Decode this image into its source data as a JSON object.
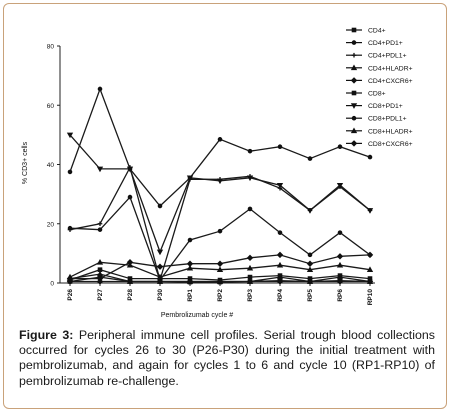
{
  "chart_data": {
    "type": "line",
    "xlabel": "Pembrolizumab cycle #",
    "ylabel": "% CD3+ cells",
    "ylim": [
      0,
      80
    ],
    "yticks": [
      0,
      20,
      40,
      60,
      80
    ],
    "categories": [
      "P26",
      "P27",
      "P28",
      "P30",
      "RP1",
      "RP2",
      "RP3",
      "RP4",
      "RP5",
      "RP6",
      "RP10"
    ],
    "legend_position": "right",
    "grid": false,
    "series": [
      {
        "name": "CD4+",
        "marker": "square",
        "values": [
          0.5,
          2,
          0.5,
          0.5,
          0.3,
          0.3,
          0.5,
          0.8,
          0.5,
          0.8,
          0.5
        ]
      },
      {
        "name": "CD4+PD1+",
        "marker": "circle",
        "values": [
          37.5,
          65.5,
          38.5,
          26,
          35.5,
          48.5,
          44.5,
          46,
          42,
          46,
          42.5
        ]
      },
      {
        "name": "CD4+PDL1+",
        "marker": "plus",
        "values": [
          18,
          20,
          39,
          1,
          35,
          35,
          36,
          32,
          24.5,
          32.5,
          24.5
        ]
      },
      {
        "name": "CD4+HLADR+",
        "marker": "triangle-up",
        "values": [
          1.5,
          3,
          0.5,
          0.5,
          0.5,
          0.5,
          0.5,
          2,
          0.5,
          2,
          0.5
        ]
      },
      {
        "name": "CD4+CXCR6+",
        "marker": "diamond",
        "values": [
          0.5,
          0.5,
          0.5,
          0.5,
          0.5,
          0.5,
          0.5,
          0.5,
          0.5,
          0.5,
          0.5
        ]
      },
      {
        "name": "CD8+",
        "marker": "square",
        "values": [
          1,
          4.5,
          1.5,
          1.5,
          1.5,
          1,
          2,
          2.5,
          1.5,
          2.5,
          1.5
        ]
      },
      {
        "name": "CD8+PD1+",
        "marker": "triangle-down",
        "values": [
          50,
          38.5,
          38.5,
          10.5,
          35.5,
          34.5,
          35.5,
          33,
          24.5,
          33,
          24.5
        ]
      },
      {
        "name": "CD8+PDL1+",
        "marker": "circle",
        "values": [
          18.5,
          18,
          29,
          1,
          14.5,
          17.5,
          25,
          17,
          9.5,
          17,
          9.5
        ]
      },
      {
        "name": "CD8+HLADR+",
        "marker": "triangle-up",
        "values": [
          2,
          7,
          6,
          2,
          5,
          4.5,
          5,
          6,
          4.5,
          6,
          4.5
        ]
      },
      {
        "name": "CD8+CXCR6+",
        "marker": "diamond",
        "values": [
          1.5,
          1.5,
          7,
          5.5,
          6.5,
          6.5,
          8.5,
          9.5,
          6.5,
          9,
          9.5
        ]
      }
    ]
  },
  "caption": {
    "label": "Figure 3:",
    "text": "Peripheral immune cell profiles. Serial trough blood collections occurred for cycles 26 to 30 (P26-P30) during the initial treatment with pembrolizumab, and again for cycles 1 to 6 and cycle 10 (RP1-RP10) of pembrolizumab re-challenge."
  }
}
